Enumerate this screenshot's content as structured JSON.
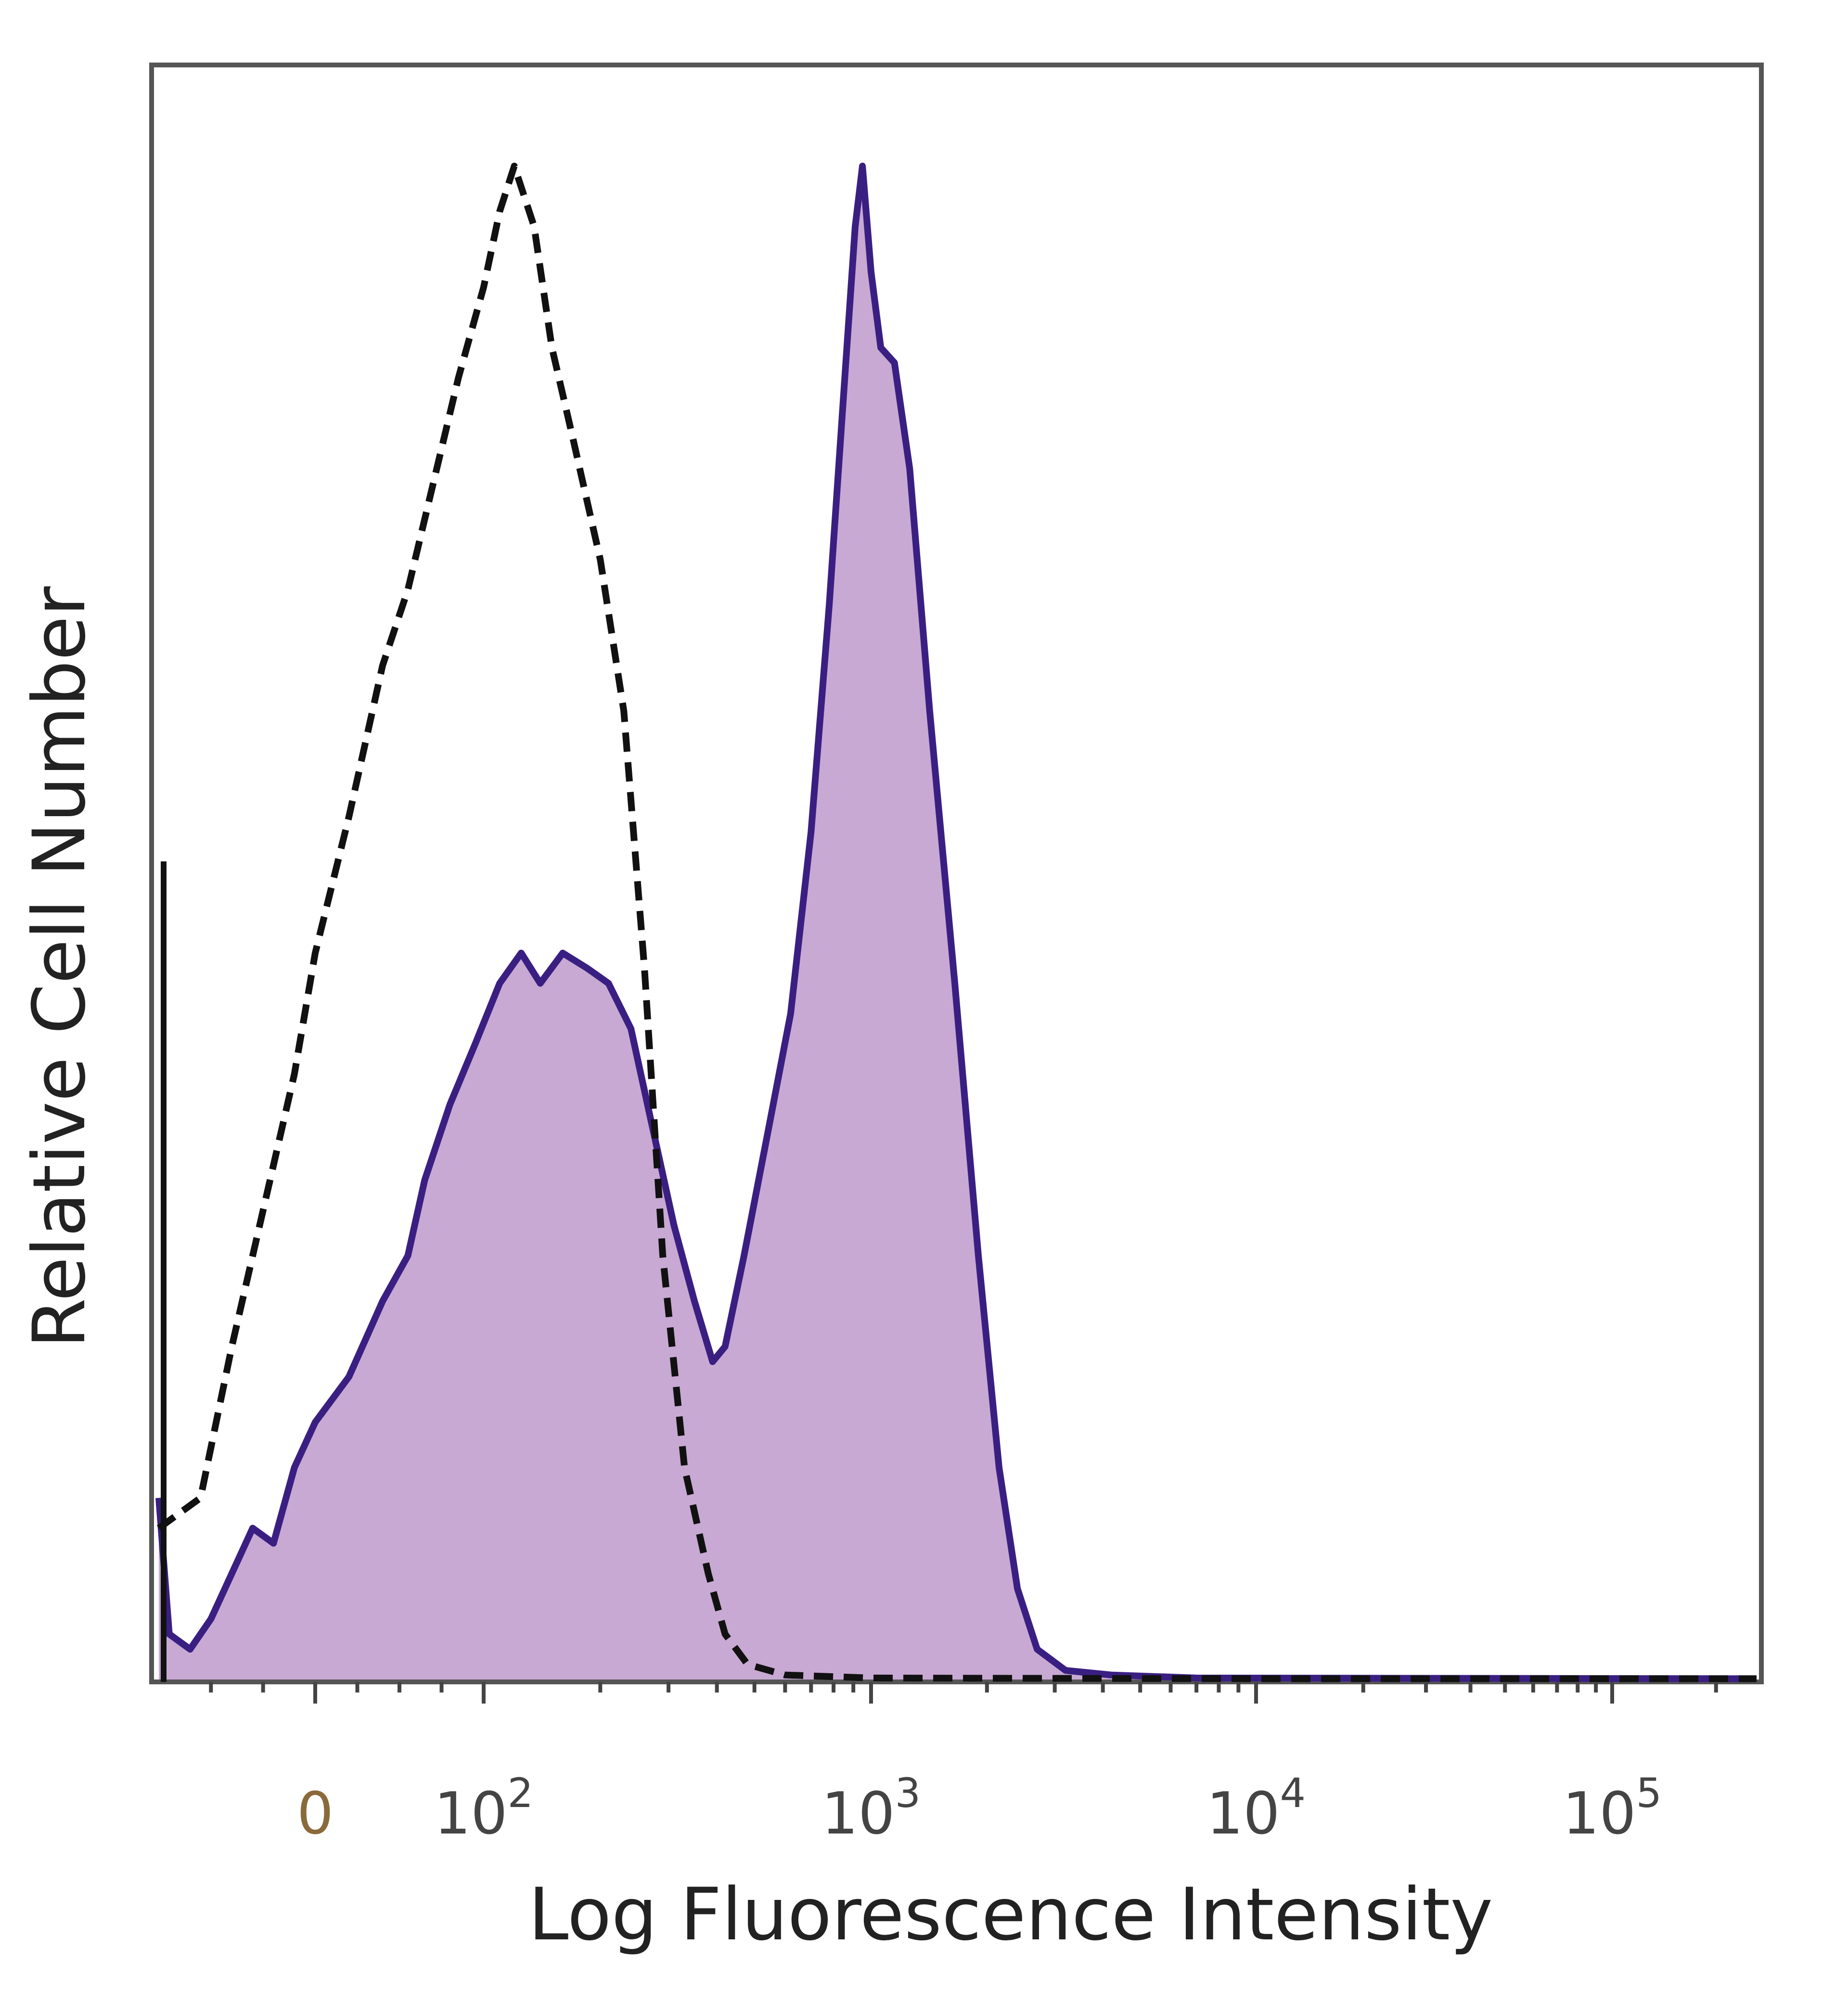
{
  "chart_data": {
    "type": "area",
    "title": "",
    "xlabel": "Log Fluorescence Intensity",
    "ylabel": "Relative Cell Number",
    "x_scale": "biexponential",
    "x_ticks": [
      {
        "value": 0,
        "label": "0"
      },
      {
        "value": 100,
        "label": "10",
        "exp": "2"
      },
      {
        "value": 1000,
        "label": "10",
        "exp": "3"
      },
      {
        "value": 10000,
        "label": "10",
        "exp": "4"
      },
      {
        "value": 100000,
        "label": "10",
        "exp": "5"
      }
    ],
    "xlim": [
      -150,
      262144
    ],
    "ylim": [
      0,
      100
    ],
    "grid": false,
    "legend": "none",
    "colors": {
      "stained_fill": "#c8a9d3",
      "stained_line": "#3a1f82",
      "control_line": "#111111"
    },
    "series": [
      {
        "style": "dashed",
        "points": [
          [
            -150,
            10
          ],
          [
            -110,
            12
          ],
          [
            -80,
            22
          ],
          [
            -50,
            31
          ],
          [
            -20,
            40
          ],
          [
            0,
            48
          ],
          [
            20,
            57
          ],
          [
            40,
            67
          ],
          [
            55,
            72
          ],
          [
            70,
            79
          ],
          [
            85,
            86
          ],
          [
            100,
            92
          ],
          [
            110,
            97
          ],
          [
            120,
            100
          ],
          [
            135,
            96
          ],
          [
            150,
            88
          ],
          [
            170,
            82
          ],
          [
            200,
            74
          ],
          [
            230,
            64
          ],
          [
            260,
            47
          ],
          [
            290,
            28
          ],
          [
            330,
            14
          ],
          [
            380,
            7
          ],
          [
            420,
            3
          ],
          [
            480,
            1
          ],
          [
            600,
            0.3
          ],
          [
            1000,
            0.1
          ],
          [
            10000,
            0.05
          ],
          [
            262144,
            0.05
          ]
        ]
      },
      {
        "style": "filled",
        "points": [
          [
            -150,
            12
          ],
          [
            -140,
            3
          ],
          [
            -120,
            2
          ],
          [
            -100,
            4
          ],
          [
            -80,
            7
          ],
          [
            -60,
            10
          ],
          [
            -40,
            9
          ],
          [
            -20,
            14
          ],
          [
            0,
            17
          ],
          [
            20,
            20
          ],
          [
            40,
            25
          ],
          [
            55,
            28
          ],
          [
            65,
            33
          ],
          [
            80,
            38
          ],
          [
            95,
            42
          ],
          [
            110,
            46
          ],
          [
            125,
            48
          ],
          [
            140,
            46
          ],
          [
            160,
            48
          ],
          [
            185,
            47
          ],
          [
            210,
            46
          ],
          [
            240,
            43
          ],
          [
            270,
            37
          ],
          [
            310,
            30
          ],
          [
            350,
            25
          ],
          [
            390,
            21
          ],
          [
            420,
            22
          ],
          [
            470,
            28
          ],
          [
            540,
            36
          ],
          [
            620,
            44
          ],
          [
            700,
            56
          ],
          [
            780,
            71
          ],
          [
            850,
            85
          ],
          [
            910,
            96
          ],
          [
            950,
            100
          ],
          [
            1000,
            93
          ],
          [
            1060,
            88
          ],
          [
            1150,
            87
          ],
          [
            1260,
            80
          ],
          [
            1420,
            64
          ],
          [
            1650,
            46
          ],
          [
            1900,
            28
          ],
          [
            2150,
            14
          ],
          [
            2400,
            6
          ],
          [
            2700,
            2
          ],
          [
            3200,
            0.6
          ],
          [
            4200,
            0.3
          ],
          [
            7000,
            0.1
          ],
          [
            262144,
            0.05
          ]
        ]
      }
    ]
  }
}
